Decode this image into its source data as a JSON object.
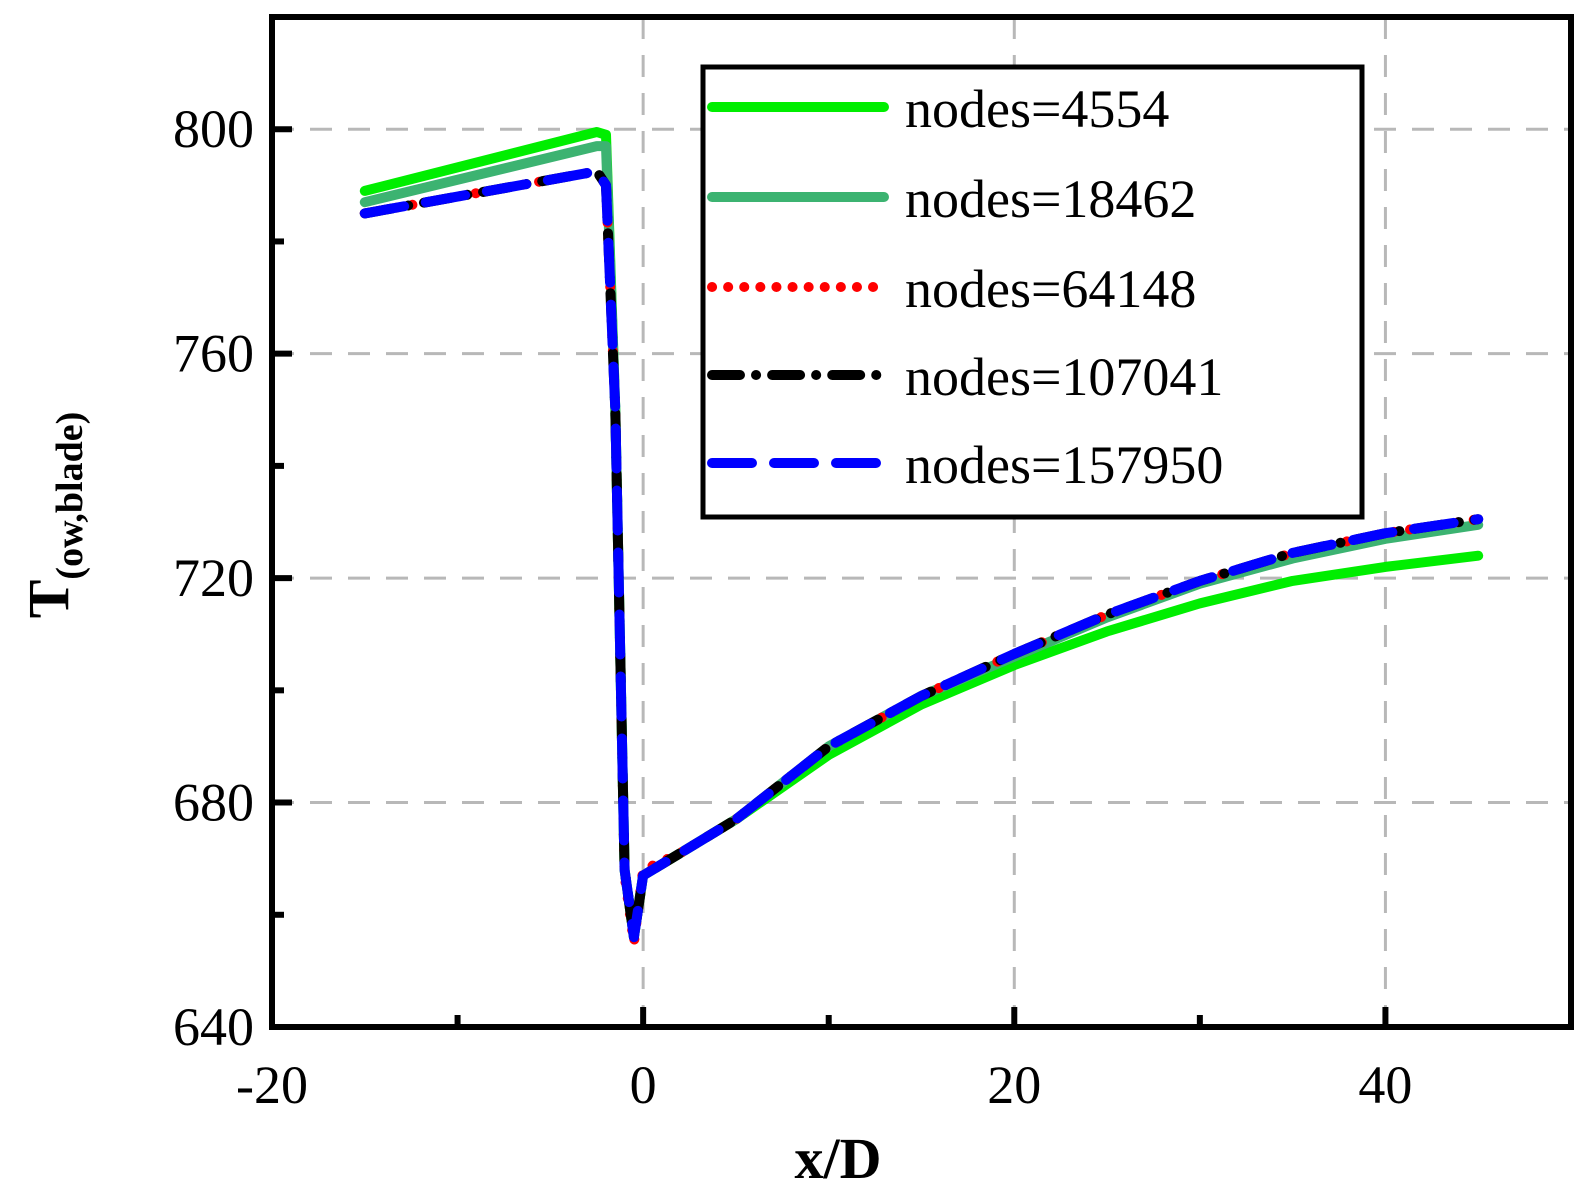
{
  "chart_data": {
    "type": "line",
    "title": "",
    "xlabel": "x/D",
    "ylabel_main": "T",
    "ylabel_sub": "(ow,blade)",
    "xlim": [
      -20,
      50
    ],
    "ylim": [
      640,
      820
    ],
    "xticks": [
      -20,
      0,
      20,
      40
    ],
    "xtick_labels": [
      "-20",
      "0",
      "20",
      "40"
    ],
    "yticks": [
      640,
      680,
      720,
      760,
      800
    ],
    "ytick_labels": [
      "640",
      "680",
      "720",
      "760",
      "800"
    ],
    "grid": true,
    "legend_position": "top-right",
    "series": [
      {
        "name": "nodes=4554",
        "color": "#00ee00",
        "style": "solid",
        "x": [
          -15,
          -2.5,
          -2,
          -1.5,
          -1,
          -0.5,
          0,
          2,
          5,
          10,
          15,
          20,
          25,
          30,
          35,
          40,
          45
        ],
        "y": [
          789,
          799.5,
          799,
          750,
          668,
          656,
          667,
          671,
          677,
          688.5,
          697.5,
          704.5,
          710.5,
          715.5,
          719.5,
          722,
          724
        ]
      },
      {
        "name": "nodes=18462",
        "color": "#3cb371",
        "style": "solid",
        "x": [
          -15,
          -2.5,
          -2,
          -1.5,
          -1,
          -0.5,
          0,
          2,
          5,
          10,
          15,
          20,
          25,
          30,
          35,
          40,
          45
        ],
        "y": [
          787,
          797,
          797,
          750,
          668,
          656,
          667,
          671,
          677,
          690,
          699,
          706,
          713,
          719,
          723.5,
          727,
          729.5
        ]
      },
      {
        "name": "nodes=64148",
        "color": "#ff0000",
        "style": "dot",
        "x": [
          -15,
          -2.5,
          -2,
          -1.5,
          -1,
          -0.5,
          0,
          2,
          5,
          10,
          15,
          20,
          25,
          30,
          35,
          40,
          45
        ],
        "y": [
          785,
          792.5,
          790,
          750,
          667,
          655,
          668,
          671,
          677,
          690,
          699,
          706.5,
          713.5,
          719.5,
          724.5,
          728,
          730.5
        ]
      },
      {
        "name": "nodes=107041",
        "color": "#000000",
        "style": "dashdot",
        "x": [
          -15,
          -2.5,
          -2,
          -1.5,
          -1,
          -0.5,
          0,
          2,
          5,
          10,
          15,
          20,
          25,
          30,
          35,
          40,
          45
        ],
        "y": [
          785,
          792.5,
          790,
          750,
          668,
          656,
          667,
          671,
          677,
          690,
          699,
          706.5,
          713.5,
          719.5,
          724.5,
          728,
          730.5
        ]
      },
      {
        "name": "nodes=157950",
        "color": "#0000ff",
        "style": "dash",
        "x": [
          -15,
          -2.5,
          -2,
          -1.5,
          -1,
          -0.5,
          0,
          2,
          5,
          10,
          15,
          20,
          25,
          30,
          35,
          40,
          45
        ],
        "y": [
          785,
          792.5,
          790,
          750,
          668,
          656,
          667,
          671,
          677,
          690,
          699,
          706.5,
          713.5,
          719.5,
          724.5,
          728,
          730.5
        ]
      }
    ]
  }
}
